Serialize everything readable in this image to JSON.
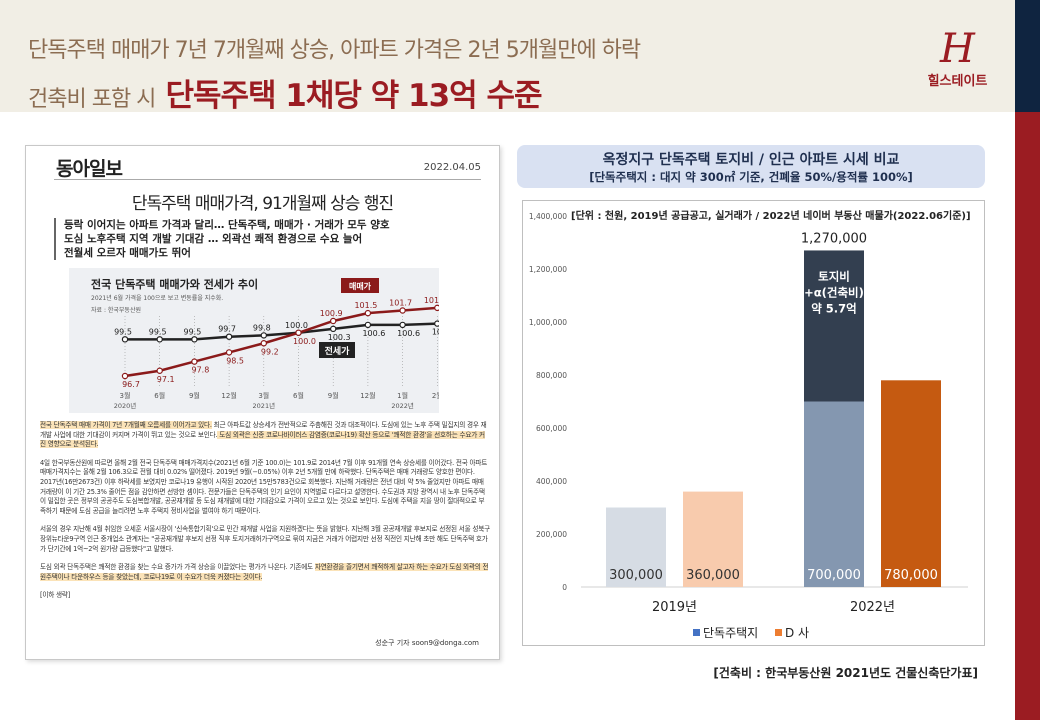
{
  "header": {
    "line1": "단독주택 매매가 7년 7개월째 상승, 아파트 가격은 2년 5개월만에 하락",
    "line2_prefix": "건축비 포함 시",
    "line2_emphasis": "단독주택 1채당 약 13억 수준",
    "logo_mark": "H",
    "logo_name": "힐스테이트"
  },
  "colors": {
    "brand_red": "#9b1c22",
    "navy": "#0f2440",
    "beige": "#f1eee5"
  },
  "article": {
    "paper": "동아일보",
    "date": "2022.04.05",
    "headline": "단독주택 매매가격, 91개월째 상승 행진",
    "subheads": [
      "등락 이어지는 아파트 가격과 달리… 단독주택, 매매가 · 거래가 모두 양호",
      "도심 노후주택 지역 개발 기대감 … 외곽선 쾌적 환경으로 수요 늘어",
      "전월세 오르자 매매가도 뛰어"
    ],
    "p1_hl1": "전국 단독주택 매매 가격이 7년 7개월째 오름세를 이어가고 있다.",
    "p1_mid": " 최근 아파트값 상승세가 전반적으로 주춤해진 것과 대조적이다. 도심에 있는 노후 주택 밀집지의 경우 재개발 사업에 대한 기대감이 커지며 가격이 뛰고 있는 것으로 보인다.",
    "p1_hl2": " 도심 외곽은 신종 코로나바이러스 감염증(코로나19) 확산 등으로 '쾌적한 환경'을 선호하는 수요가 커진 영향으로 분석된다.",
    "p2": "4일 한국부동산원에 따르면 올해 2월 전국 단독주택 매매가격지수(2021년 6월 기준 100.0)는 101.9로 2014년 7월 이후 91개월 연속 상승세를 이어갔다. 전국 아파트 매매가격지수는 올해 2월 106.3으로 전월 대비 0.02% 떨어졌다. 2019년 9월(−0.05%) 이후 2년 5개월 만에 하락했다. 단독주택은 매매 거래량도 양호한 편이다. 2017년(16만2673건) 이후 하락세를 보였지만 코로나19 유행이 시작된 2020년 15만5783건으로 회복했다. 지난해 거래량은 전년 대비 약 5% 줄었지만 아파트 매매 거래량이 이 기간 25.3% 줄어든 점을 감안하면 선방한 셈이다. 전문가들은 단독주택의 인기 요인이 지역별로 다르다고 설명한다. 수도권과 지방 광역시 내 노후 단독주택이 밀집한 곳은 정부의 공공주도 도심복합개발, 공공재개발 등 도심 재개발에 대한 기대감으로 가격이 오르고 있는 것으로 보인다. 도심에 주택을 지을 땅이 절대적으로 부족하기 때문에 도심 공급을 늘리려면 노후 주택지 정비사업을 벌여야 하기 때문이다.",
    "p3": "서울의 경우 지난해 4월 취임한 오세훈 서울시장이 '신속통합기획'으로 민간 재개발 사업을 지원하겠다는 뜻을 밝혔다. 지난해 3월 공공재개발 후보지로 선정된 서울 성북구 장위뉴타운9구역 인근 중개업소 관계자는 \"공공재개발 후보지 선정 직후 토지거래허가구역으로 묶여 지금은 거래가 어렵지만 선정 직전인 지난해 초만 해도 단독주택 호가가 단기간에 1억~2억 원가량 급등했다\"고 말했다.",
    "p4_pre": "도심 외곽 단독주택은 쾌적한 환경을 찾는 수요 증가가 가격 상승을 이끌었다는 평가가 나온다. 기존에도 ",
    "p4_hl": "자연환경을 즐기면서 쾌적하게 살고자 하는 수요가 도심 외곽의 전원주택이나 타운하우스 등을 찾았는데, 코로나19로 이 수요가 더욱 커졌다는 것이다.",
    "omitted": "[이하 생략]",
    "byline": "성순구 기자 soon9@donga.com"
  },
  "chart_data": [
    {
      "type": "line",
      "title": "전국 단독주택 매매가와 전세가 추이",
      "subtitle": "2021년 6월 가격을 100으로 보고 변동률을 지수화.",
      "source": "자료 : 한국부동산원",
      "categories": [
        "3월",
        "6월",
        "9월",
        "12월",
        "3월",
        "6월",
        "9월",
        "12월",
        "1월",
        "2월"
      ],
      "year_labels": [
        {
          "index": 0,
          "label": "2020년"
        },
        {
          "index": 4,
          "label": "2021년"
        },
        {
          "index": 8,
          "label": "2022년"
        }
      ],
      "series": [
        {
          "name": "매매가",
          "color": "#8b1a1a",
          "values": [
            96.7,
            97.1,
            97.8,
            98.5,
            99.2,
            100.0,
            100.9,
            101.5,
            101.7,
            101.9
          ]
        },
        {
          "name": "전세가",
          "color": "#222222",
          "values": [
            99.5,
            99.5,
            99.5,
            99.7,
            99.8,
            100.0,
            100.3,
            100.6,
            100.6,
            100.7
          ]
        }
      ],
      "ylim": [
        96.2,
        102.5
      ],
      "grid": "vertical dotted"
    },
    {
      "type": "bar",
      "title": "옥정지구 단독주택 토지비 / 인근 아파트 시세 비교",
      "subtitle": "[단독주택지 : 대지 약 300㎡ 기준, 건폐율 50%/용적률 100%]",
      "unit_note": "[단위 : 천원, 2019년 공급공고, 실거래가 / 2022년 네이버 부동산 매물가(2022.06기준)]",
      "categories": [
        "2019년",
        "2022년"
      ],
      "series": [
        {
          "name": "단독주택지",
          "values": [
            300000,
            700000
          ],
          "colors": [
            "#d6dce4",
            "#8497b0"
          ],
          "legend_color": "#4472c4"
        },
        {
          "name": "D 사",
          "values": [
            360000,
            780000
          ],
          "colors": [
            "#f8cbad",
            "#c55a11"
          ],
          "legend_color": "#ed7d31"
        }
      ],
      "stack_on_2022_land": {
        "value": 570000,
        "total_label": "1,270,000",
        "color": "#333f50",
        "label_lines": [
          "토지비",
          "+α(건축비)",
          "약 5.7억"
        ]
      },
      "yticks": [
        0,
        200000,
        400000,
        600000,
        800000,
        1000000,
        1200000,
        1400000
      ],
      "ylim": [
        0,
        1400000
      ],
      "legend": "bottom",
      "grid": false
    },
    {
      "note": "[건축비 : 한국부동산원 2021년도 건물신축단가표]"
    }
  ]
}
